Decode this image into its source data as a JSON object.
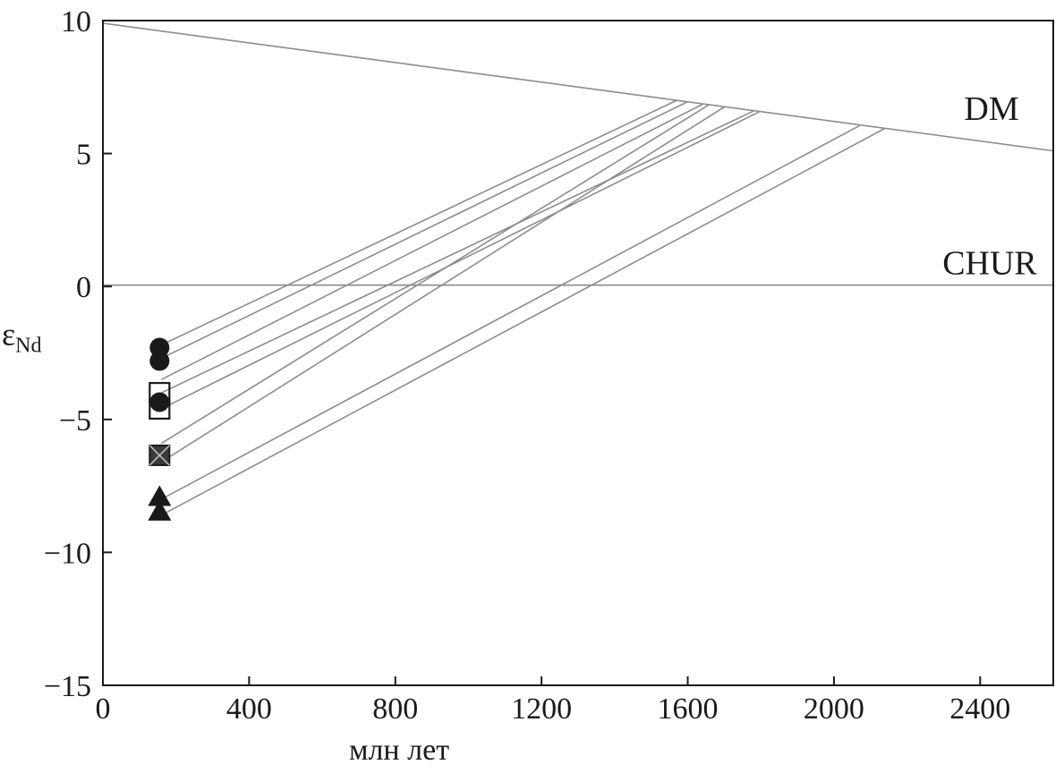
{
  "chart_data": {
    "type": "line",
    "title": "",
    "xlabel": "млн лет",
    "ylabel_main": "ε",
    "ylabel_sub": "Nd",
    "xlim": [
      0,
      2600
    ],
    "ylim": [
      -15,
      10
    ],
    "xticks": [
      0,
      400,
      800,
      1200,
      1600,
      2000,
      2400
    ],
    "yticks": [
      10,
      5,
      0,
      -5,
      -10,
      -15
    ],
    "ytick_labels": [
      "10",
      "5",
      "0",
      "−5",
      "−10",
      "−15"
    ],
    "grid": false,
    "reference_lines": [
      {
        "name": "DM",
        "x": [
          0,
          2600
        ],
        "y": [
          9.9,
          5.1
        ]
      },
      {
        "name": "CHUR",
        "x": [
          0,
          2600
        ],
        "y": [
          0.05,
          0.05
        ]
      }
    ],
    "evolution_lines": [
      {
        "x": [
          160,
          1570
        ],
        "y": [
          -2.2,
          7.0
        ]
      },
      {
        "x": [
          160,
          1600
        ],
        "y": [
          -2.7,
          6.95
        ]
      },
      {
        "x": [
          160,
          1640
        ],
        "y": [
          -3.5,
          6.85
        ]
      },
      {
        "x": [
          160,
          1780
        ],
        "y": [
          -4.0,
          6.6
        ]
      },
      {
        "x": [
          160,
          1800
        ],
        "y": [
          -4.6,
          6.6
        ]
      },
      {
        "x": [
          160,
          1660
        ],
        "y": [
          -5.9,
          6.85
        ]
      },
      {
        "x": [
          160,
          1700
        ],
        "y": [
          -6.6,
          6.75
        ]
      },
      {
        "x": [
          160,
          2070
        ],
        "y": [
          -8.0,
          6.05
        ]
      },
      {
        "x": [
          160,
          2140
        ],
        "y": [
          -8.6,
          5.95
        ]
      }
    ],
    "samples": [
      {
        "marker": "filled-circle",
        "x": 155,
        "y": -2.3
      },
      {
        "marker": "filled-circle",
        "x": 155,
        "y": -2.8
      },
      {
        "marker": "open-square",
        "x": 155,
        "y": -4.0
      },
      {
        "marker": "open-square",
        "x": 155,
        "y": -4.6
      },
      {
        "marker": "filled-circle",
        "x": 155,
        "y": -4.35
      },
      {
        "marker": "crossed-square",
        "x": 155,
        "y": -6.35
      },
      {
        "marker": "filled-triangle",
        "x": 155,
        "y": -7.95
      },
      {
        "marker": "filled-triangle",
        "x": 155,
        "y": -8.5
      }
    ],
    "colors": {
      "evolution_lines": "#8c8c8c",
      "axis": "#1a1a1a",
      "markers": "#1a1a1a"
    }
  }
}
